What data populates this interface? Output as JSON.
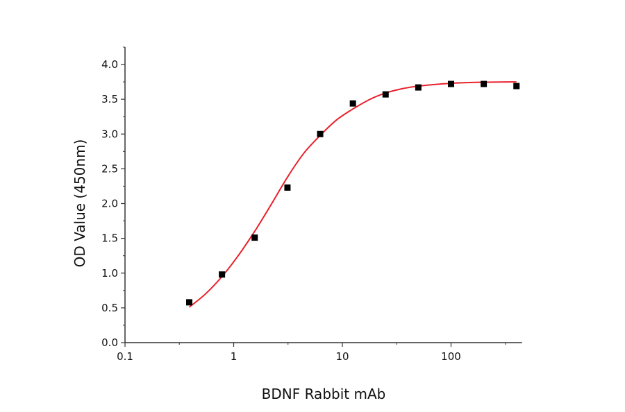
{
  "chart_data": {
    "type": "scatter",
    "title": "",
    "xlabel": "BDNF Rabbit mAb",
    "ylabel": "OD Value (450nm)",
    "xscale": "log",
    "xlim": [
      0.1,
      450
    ],
    "ylim": [
      0,
      4.25
    ],
    "xticks": [
      0.1,
      1,
      10,
      100
    ],
    "xtick_labels": [
      "0.1",
      "1",
      "10",
      "100"
    ],
    "yticks": [
      0,
      0.5,
      1,
      1.5,
      2,
      2.5,
      3,
      3.5,
      4
    ],
    "ytick_labels": [
      "0.0",
      "0.5",
      "1.0",
      "1.5",
      "2.0",
      "2.5",
      "3.0",
      "3.5",
      "4.0"
    ],
    "grid": false,
    "colors": {
      "points": "#000000",
      "fit": "#e8202a",
      "axis": "#333333"
    },
    "series": [
      {
        "kind": "points",
        "marker": "square",
        "x": [
          0.39,
          0.78,
          1.56,
          3.125,
          6.25,
          12.5,
          25,
          50,
          100,
          200,
          400
        ],
        "y": [
          0.58,
          0.98,
          1.51,
          2.23,
          3.0,
          3.44,
          3.57,
          3.67,
          3.72,
          3.72,
          3.69
        ]
      },
      {
        "kind": "fit-curve",
        "x": [
          0.39,
          0.55,
          0.78,
          1.1,
          1.56,
          2.2,
          3.125,
          4.4,
          6.25,
          8.8,
          12.5,
          18,
          25,
          35,
          50,
          100,
          200,
          400
        ],
        "y": [
          0.51,
          0.7,
          0.95,
          1.25,
          1.6,
          1.98,
          2.38,
          2.72,
          2.98,
          3.2,
          3.36,
          3.5,
          3.59,
          3.65,
          3.69,
          3.73,
          3.745,
          3.75
        ]
      }
    ]
  }
}
